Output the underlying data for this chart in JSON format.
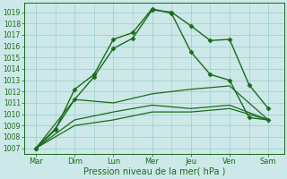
{
  "xlabel": "Pression niveau de la mer( hPa )",
  "days": [
    "Mar",
    "Dim",
    "Lun",
    "Mer",
    "Jeu",
    "Ven",
    "Sam"
  ],
  "day_positions": [
    0,
    1,
    2,
    3,
    4,
    5,
    6
  ],
  "ylim": [
    1006.5,
    1019.8
  ],
  "yticks": [
    1007,
    1008,
    1009,
    1010,
    1011,
    1012,
    1013,
    1014,
    1015,
    1016,
    1017,
    1018,
    1019
  ],
  "line_color": "#1a6b1a",
  "bg_color": "#cce8e8",
  "grid_color": "#99cccc",
  "series": [
    {
      "x": [
        0,
        0.5,
        1.0,
        1.5,
        2.0,
        2.5,
        3.0,
        3.5,
        4.0,
        4.5,
        5.0,
        5.5,
        6.0
      ],
      "y": [
        1007.0,
        1008.7,
        1011.3,
        1013.3,
        1015.8,
        1016.7,
        1019.2,
        1019.0,
        1017.8,
        1016.5,
        1016.6,
        1012.6,
        1010.5
      ],
      "marker": "D",
      "markersize": 2.5,
      "linewidth": 1.0,
      "linestyle": "-"
    },
    {
      "x": [
        0,
        0.5,
        1.0,
        1.5,
        2.0,
        2.5,
        3.0,
        3.5,
        4.0,
        4.5,
        5.0,
        5.5,
        6.0
      ],
      "y": [
        1007.0,
        1008.6,
        1012.2,
        1013.5,
        1016.6,
        1017.2,
        1019.3,
        1018.9,
        1015.5,
        1013.5,
        1013.0,
        1009.7,
        1009.5
      ],
      "marker": "D",
      "markersize": 2.5,
      "linewidth": 1.0,
      "linestyle": "-"
    },
    {
      "x": [
        0,
        1,
        2,
        3,
        4,
        5,
        6
      ],
      "y": [
        1007.0,
        1011.3,
        1011.0,
        1011.8,
        1012.2,
        1012.5,
        1009.5
      ],
      "marker": null,
      "markersize": 0,
      "linewidth": 0.9,
      "linestyle": "-"
    },
    {
      "x": [
        0,
        1,
        2,
        3,
        4,
        5,
        6
      ],
      "y": [
        1007.0,
        1009.5,
        1010.2,
        1010.8,
        1010.5,
        1010.8,
        1009.5
      ],
      "marker": null,
      "markersize": 0,
      "linewidth": 0.9,
      "linestyle": "-"
    },
    {
      "x": [
        0,
        1,
        2,
        3,
        4,
        5,
        6
      ],
      "y": [
        1007.0,
        1009.0,
        1009.5,
        1010.2,
        1010.2,
        1010.5,
        1009.5
      ],
      "marker": null,
      "markersize": 0,
      "linewidth": 0.9,
      "linestyle": "-"
    }
  ]
}
